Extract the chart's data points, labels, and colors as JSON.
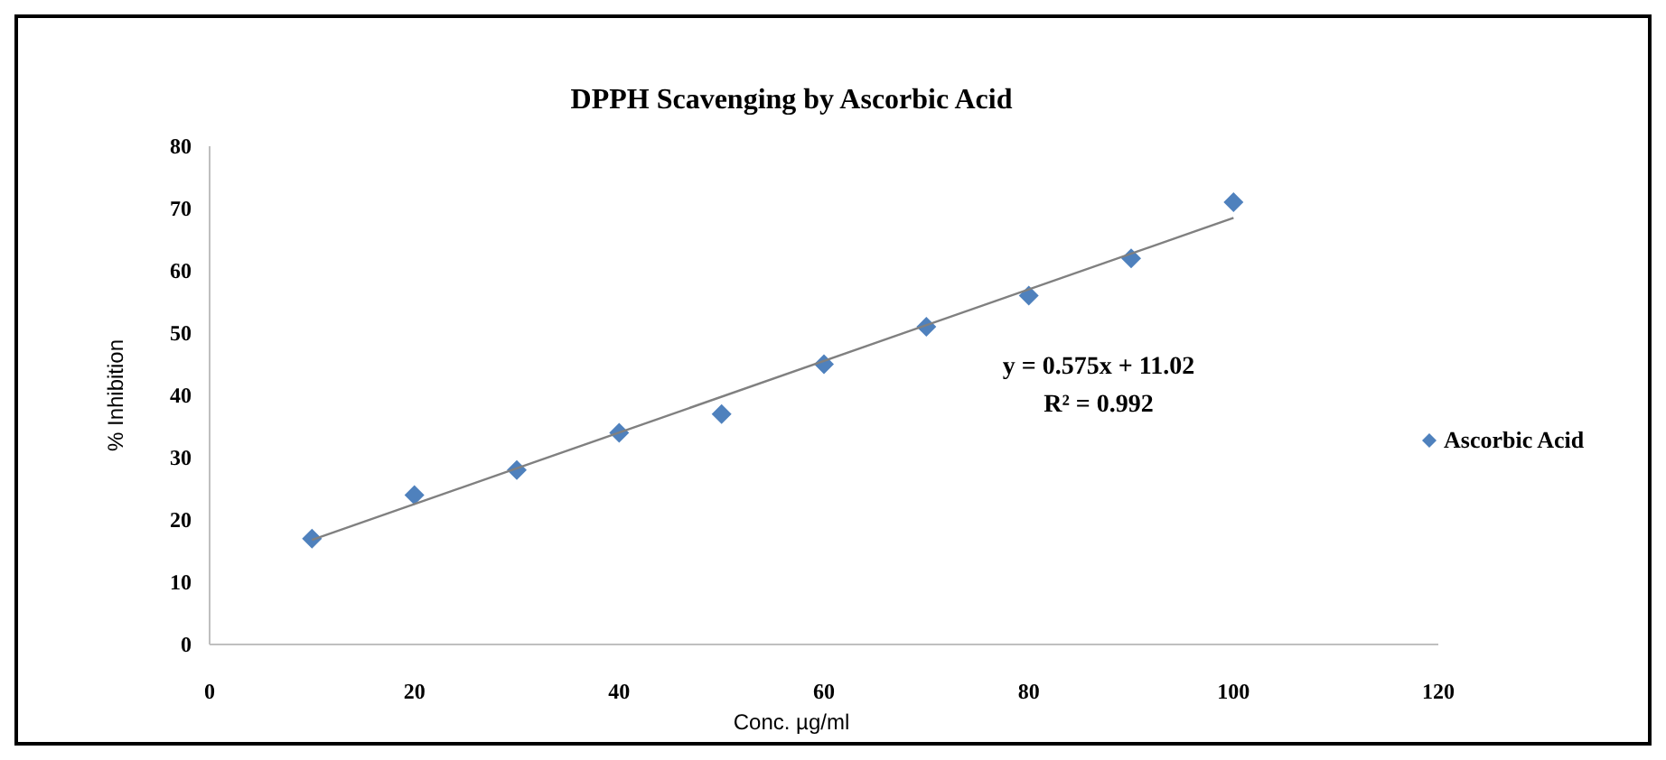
{
  "chart_data": {
    "type": "scatter",
    "title": "DPPH Scavenging by Ascorbic Acid",
    "xlabel": "Conc. µg/ml",
    "ylabel": "% Inhibition",
    "xlim": [
      0,
      120
    ],
    "xticks": [
      0,
      20,
      40,
      60,
      80,
      100,
      120
    ],
    "ylim": [
      0,
      80
    ],
    "yticks": [
      0,
      10,
      20,
      30,
      40,
      50,
      60,
      70,
      80
    ],
    "series": [
      {
        "name": "Ascorbic Acid",
        "color": "#4f81bd",
        "x": [
          10,
          20,
          30,
          40,
          50,
          60,
          70,
          80,
          90,
          100
        ],
        "values": [
          17,
          24,
          28,
          34,
          37,
          45,
          51,
          56,
          62,
          71
        ],
        "marker": "diamond"
      },
      {
        "type": "line",
        "color": "#808080",
        "x": [
          10,
          100
        ],
        "values": [
          16.8,
          68.5
        ],
        "marker": "none"
      }
    ],
    "annotations": [
      "y = 0.575x + 11.02",
      "R² = 0.992"
    ],
    "legend": "right",
    "grid": false
  }
}
